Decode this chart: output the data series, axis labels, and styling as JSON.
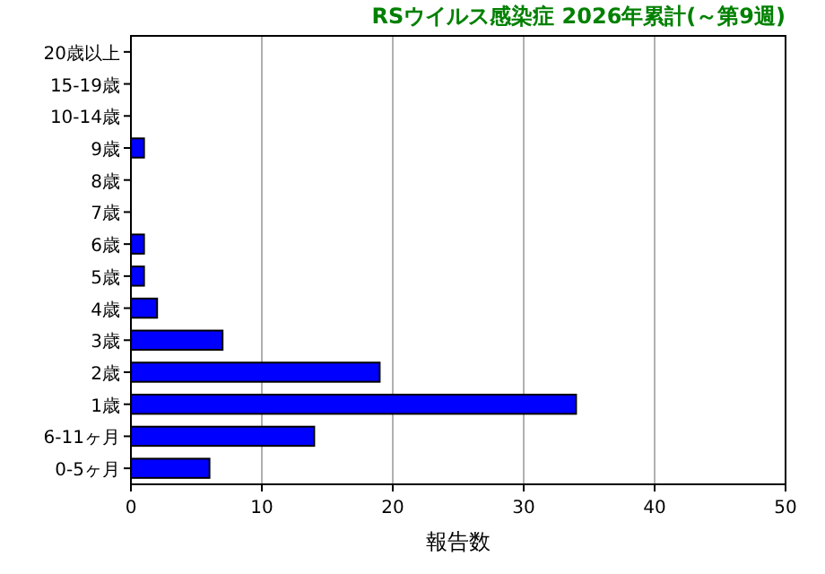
{
  "chart_data": {
    "type": "bar",
    "orientation": "horizontal",
    "title": "RSウイルス感染症 2026年累計(～第9週)",
    "xlabel": "報告数",
    "categories": [
      "20歳以上",
      "15-19歳",
      "10-14歳",
      "9歳",
      "8歳",
      "7歳",
      "6歳",
      "5歳",
      "4歳",
      "3歳",
      "2歳",
      "1歳",
      "6-11ヶ月",
      "0-5ヶ月"
    ],
    "values": [
      0,
      0,
      0,
      1,
      0,
      0,
      1,
      1,
      2,
      7,
      19,
      34,
      14,
      6
    ],
    "color": "#0000ff",
    "xlim": [
      0,
      50
    ],
    "xticks": [
      0,
      10,
      20,
      30,
      40,
      50
    ],
    "grid": "x"
  }
}
